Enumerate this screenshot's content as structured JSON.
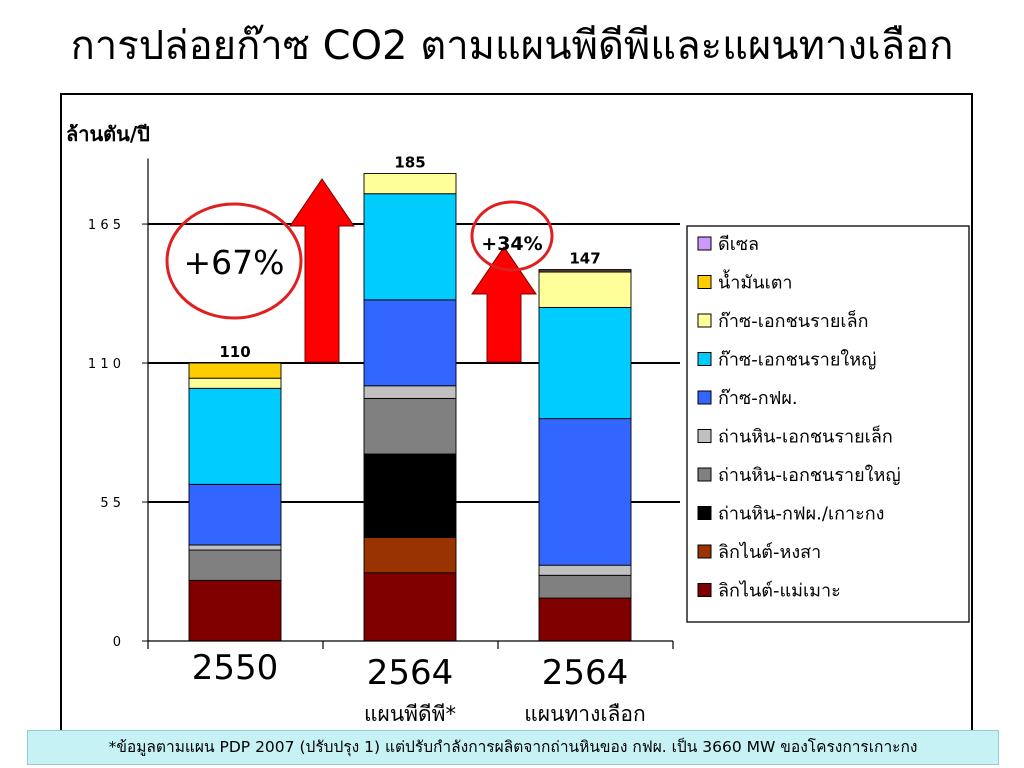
{
  "title": "การปล่อยก๊าซ CO2 ตามแผนพีดีพีและแผนทางเลือก",
  "footnote": "*ข้อมูลตามแผน PDP 2007 (ปรับปรุง 1) แต่ปรับกำลังการผลิตจากถ่านหินของ กฟผ. เป็น 3660 MW ของโครงการเกาะกง",
  "chart_data": {
    "type": "bar",
    "stacked": true,
    "ylabel": "ล้านตัน/ปี",
    "ylim": [
      0,
      185
    ],
    "yticks": [
      0,
      55,
      110,
      165
    ],
    "yticks_labels": [
      "0",
      "5 5",
      "1 1 0",
      "1 6 5"
    ],
    "grid": "y-major",
    "legend_position": "right",
    "categories": [
      {
        "line1": "2550",
        "line2": ""
      },
      {
        "line1": "2564",
        "line2": "แผนพีดีพี*"
      },
      {
        "line1": "2564",
        "line2": "แผนทางเลือก"
      }
    ],
    "totals": [
      "110",
      "185",
      "147"
    ],
    "series": [
      {
        "name": "ลิกไนต์-แม่เมาะ",
        "color": "#800000",
        "values": [
          24,
          27,
          17
        ]
      },
      {
        "name": "ลิกไนต์-หงสา",
        "color": "#993300",
        "values": [
          0,
          14,
          0
        ]
      },
      {
        "name": "ถ่านหิน-กฟผ./เกาะกง",
        "color": "#000000",
        "values": [
          0,
          33,
          0
        ]
      },
      {
        "name": "ถ่านหิน-เอกชนรายใหญ่",
        "color": "#808080",
        "values": [
          12,
          22,
          9
        ]
      },
      {
        "name": "ถ่านหิน-เอกชนรายเล็ก",
        "color": "#c0c0c0",
        "values": [
          2,
          5,
          4
        ]
      },
      {
        "name": "ก๊าซ-กฟผ.",
        "color": "#3366ff",
        "values": [
          24,
          34,
          58
        ]
      },
      {
        "name": "ก๊าซ-เอกชนรายใหญ่",
        "color": "#00ccff",
        "values": [
          38,
          42,
          44
        ]
      },
      {
        "name": "ก๊าซ-เอกชนรายเล็ก",
        "color": "#ffff99",
        "values": [
          4,
          8,
          14
        ]
      },
      {
        "name": "น้ำมันเตา",
        "color": "#ffcc00",
        "values": [
          6,
          0,
          0.5
        ]
      },
      {
        "name": "ดีเซล",
        "color": "#cc99ff",
        "values": [
          0,
          0,
          0.5
        ]
      }
    ],
    "annotations": [
      {
        "text": "+67%",
        "between": [
          0,
          1
        ]
      },
      {
        "text": "+34%",
        "between": [
          1,
          2
        ]
      }
    ],
    "colors": {
      "arrow": "#ff0000",
      "ellipse": "#e02020"
    }
  }
}
